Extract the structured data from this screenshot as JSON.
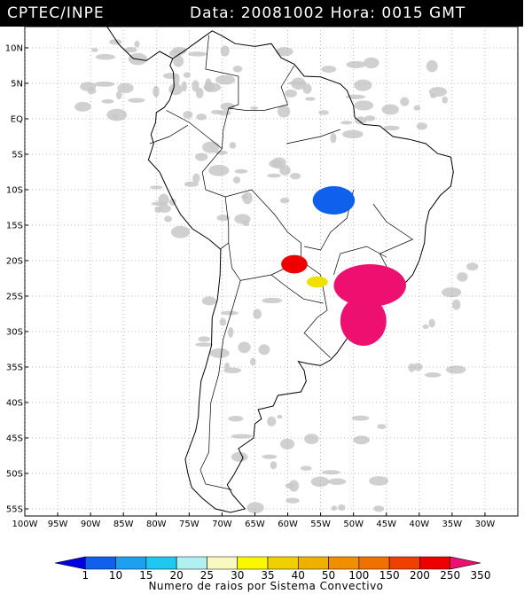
{
  "header": {
    "title_left": "CPTEC/INPE",
    "title_right": "Data: 20081002 Hora: 0015 GMT"
  },
  "map": {
    "lon_range": [
      -100,
      -25
    ],
    "lat_range": [
      -56,
      13
    ],
    "lat_labels": [
      {
        "v": 10,
        "t": "10N"
      },
      {
        "v": 5,
        "t": "5N"
      },
      {
        "v": 0,
        "t": "EQ"
      },
      {
        "v": -5,
        "t": "5S"
      },
      {
        "v": -10,
        "t": "10S"
      },
      {
        "v": -15,
        "t": "15S"
      },
      {
        "v": -20,
        "t": "20S"
      },
      {
        "v": -25,
        "t": "25S"
      },
      {
        "v": -30,
        "t": "30S"
      },
      {
        "v": -35,
        "t": "35S"
      },
      {
        "v": -40,
        "t": "40S"
      },
      {
        "v": -45,
        "t": "45S"
      },
      {
        "v": -50,
        "t": "50S"
      },
      {
        "v": -55,
        "t": "55S"
      }
    ],
    "lon_labels": [
      {
        "v": -100,
        "t": "100W"
      },
      {
        "v": -95,
        "t": "95W"
      },
      {
        "v": -90,
        "t": "90W"
      },
      {
        "v": -85,
        "t": "85W"
      },
      {
        "v": -80,
        "t": "80W"
      },
      {
        "v": -75,
        "t": "75W"
      },
      {
        "v": -70,
        "t": "70W"
      },
      {
        "v": -65,
        "t": "65W"
      },
      {
        "v": -60,
        "t": "60W"
      },
      {
        "v": -55,
        "t": "55W"
      },
      {
        "v": -50,
        "t": "50W"
      },
      {
        "v": -45,
        "t": "45W"
      },
      {
        "v": -40,
        "t": "40W"
      },
      {
        "v": -35,
        "t": "35W"
      },
      {
        "v": -30,
        "t": "30W"
      }
    ],
    "colors": {
      "coast": "#000000",
      "cloud": "#c8c8c8",
      "grid": "#aaaaaa"
    },
    "convective_systems": [
      {
        "lon": -53.0,
        "lat": -11.5,
        "rx": 3.2,
        "ry": 2.0,
        "color": "#1060ee"
      },
      {
        "lon": -59.0,
        "lat": -20.5,
        "rx": 2.0,
        "ry": 1.3,
        "color": "#ee0000"
      },
      {
        "lon": -55.5,
        "lat": -23.0,
        "rx": 1.6,
        "ry": 0.8,
        "color": "#f0e000"
      },
      {
        "lon": -47.5,
        "lat": -23.5,
        "rx": 5.5,
        "ry": 3.0,
        "color": "#ee1070"
      },
      {
        "lon": -48.5,
        "lat": -28.5,
        "rx": 3.5,
        "ry": 3.5,
        "color": "#ee1070"
      }
    ]
  },
  "colorbar": {
    "title": "Numero de raios por Sistema Convectivo",
    "colors": [
      "#0000e0",
      "#1060ee",
      "#1ea0f0",
      "#1ec8f0",
      "#b0f0f0",
      "#f8f8c0",
      "#f8f800",
      "#f0d000",
      "#f0b000",
      "#f09000",
      "#f07000",
      "#f04000",
      "#ee0000",
      "#ee1070"
    ],
    "labels": [
      "1",
      "10",
      "15",
      "20",
      "25",
      "30",
      "35",
      "40",
      "50",
      "100",
      "150",
      "200",
      "250",
      "350"
    ]
  }
}
